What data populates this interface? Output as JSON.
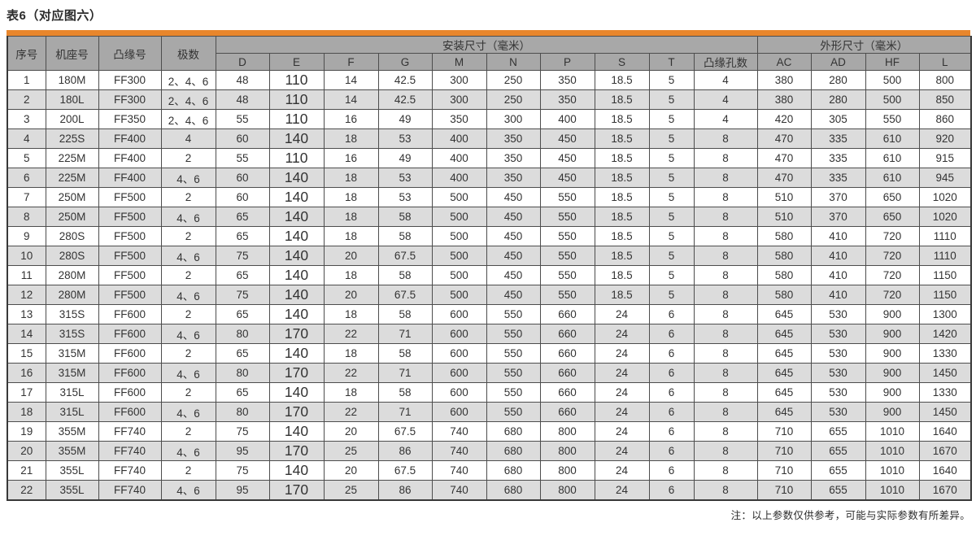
{
  "page": {
    "title": "表6（对应图六）",
    "note": "注：以上参数仅供参考，可能与实际参数有所差异。"
  },
  "colors": {
    "accent_orange": "#e8862c",
    "header_gray": "#a8a8a8",
    "alt_row_gray": "#dcdcdc",
    "border": "#4d4d4d"
  },
  "table": {
    "header": {
      "col_seq": "序号",
      "col_frame": "机座号",
      "col_flange": "凸缘号",
      "col_poles": "极数",
      "group_mounting": "安装尺寸（毫米）",
      "group_outline": "外形尺寸（毫米）",
      "mounting_cols": [
        "D",
        "E",
        "F",
        "G",
        "M",
        "N",
        "P",
        "S",
        "T",
        "凸缘孔数"
      ],
      "outline_cols": [
        "AC",
        "AD",
        "HF",
        "L"
      ]
    },
    "rows": [
      [
        "1",
        "180M",
        "FF300",
        "2、4、6",
        "48",
        "110",
        "14",
        "42.5",
        "300",
        "250",
        "350",
        "18.5",
        "5",
        "4",
        "380",
        "280",
        "500",
        "800"
      ],
      [
        "2",
        "180L",
        "FF300",
        "2、4、6",
        "48",
        "110",
        "14",
        "42.5",
        "300",
        "250",
        "350",
        "18.5",
        "5",
        "4",
        "380",
        "280",
        "500",
        "850"
      ],
      [
        "3",
        "200L",
        "FF350",
        "2、4、6",
        "55",
        "110",
        "16",
        "49",
        "350",
        "300",
        "400",
        "18.5",
        "5",
        "4",
        "420",
        "305",
        "550",
        "860"
      ],
      [
        "4",
        "225S",
        "FF400",
        "4",
        "60",
        "140",
        "18",
        "53",
        "400",
        "350",
        "450",
        "18.5",
        "5",
        "8",
        "470",
        "335",
        "610",
        "920"
      ],
      [
        "5",
        "225M",
        "FF400",
        "2",
        "55",
        "110",
        "16",
        "49",
        "400",
        "350",
        "450",
        "18.5",
        "5",
        "8",
        "470",
        "335",
        "610",
        "915"
      ],
      [
        "6",
        "225M",
        "FF400",
        "4、6",
        "60",
        "140",
        "18",
        "53",
        "400",
        "350",
        "450",
        "18.5",
        "5",
        "8",
        "470",
        "335",
        "610",
        "945"
      ],
      [
        "7",
        "250M",
        "FF500",
        "2",
        "60",
        "140",
        "18",
        "53",
        "500",
        "450",
        "550",
        "18.5",
        "5",
        "8",
        "510",
        "370",
        "650",
        "1020"
      ],
      [
        "8",
        "250M",
        "FF500",
        "4、6",
        "65",
        "140",
        "18",
        "58",
        "500",
        "450",
        "550",
        "18.5",
        "5",
        "8",
        "510",
        "370",
        "650",
        "1020"
      ],
      [
        "9",
        "280S",
        "FF500",
        "2",
        "65",
        "140",
        "18",
        "58",
        "500",
        "450",
        "550",
        "18.5",
        "5",
        "8",
        "580",
        "410",
        "720",
        "1110"
      ],
      [
        "10",
        "280S",
        "FF500",
        "4、6",
        "75",
        "140",
        "20",
        "67.5",
        "500",
        "450",
        "550",
        "18.5",
        "5",
        "8",
        "580",
        "410",
        "720",
        "1110"
      ],
      [
        "11",
        "280M",
        "FF500",
        "2",
        "65",
        "140",
        "18",
        "58",
        "500",
        "450",
        "550",
        "18.5",
        "5",
        "8",
        "580",
        "410",
        "720",
        "1150"
      ],
      [
        "12",
        "280M",
        "FF500",
        "4、6",
        "75",
        "140",
        "20",
        "67.5",
        "500",
        "450",
        "550",
        "18.5",
        "5",
        "8",
        "580",
        "410",
        "720",
        "1150"
      ],
      [
        "13",
        "315S",
        "FF600",
        "2",
        "65",
        "140",
        "18",
        "58",
        "600",
        "550",
        "660",
        "24",
        "6",
        "8",
        "645",
        "530",
        "900",
        "1300"
      ],
      [
        "14",
        "315S",
        "FF600",
        "4、6",
        "80",
        "170",
        "22",
        "71",
        "600",
        "550",
        "660",
        "24",
        "6",
        "8",
        "645",
        "530",
        "900",
        "1420"
      ],
      [
        "15",
        "315M",
        "FF600",
        "2",
        "65",
        "140",
        "18",
        "58",
        "600",
        "550",
        "660",
        "24",
        "6",
        "8",
        "645",
        "530",
        "900",
        "1330"
      ],
      [
        "16",
        "315M",
        "FF600",
        "4、6",
        "80",
        "170",
        "22",
        "71",
        "600",
        "550",
        "660",
        "24",
        "6",
        "8",
        "645",
        "530",
        "900",
        "1450"
      ],
      [
        "17",
        "315L",
        "FF600",
        "2",
        "65",
        "140",
        "18",
        "58",
        "600",
        "550",
        "660",
        "24",
        "6",
        "8",
        "645",
        "530",
        "900",
        "1330"
      ],
      [
        "18",
        "315L",
        "FF600",
        "4、6",
        "80",
        "170",
        "22",
        "71",
        "600",
        "550",
        "660",
        "24",
        "6",
        "8",
        "645",
        "530",
        "900",
        "1450"
      ],
      [
        "19",
        "355M",
        "FF740",
        "2",
        "75",
        "140",
        "20",
        "67.5",
        "740",
        "680",
        "800",
        "24",
        "6",
        "8",
        "710",
        "655",
        "1010",
        "1640"
      ],
      [
        "20",
        "355M",
        "FF740",
        "4、6",
        "95",
        "170",
        "25",
        "86",
        "740",
        "680",
        "800",
        "24",
        "6",
        "8",
        "710",
        "655",
        "1010",
        "1670"
      ],
      [
        "21",
        "355L",
        "FF740",
        "2",
        "75",
        "140",
        "20",
        "67.5",
        "740",
        "680",
        "800",
        "24",
        "6",
        "8",
        "710",
        "655",
        "1010",
        "1640"
      ],
      [
        "22",
        "355L",
        "FF740",
        "4、6",
        "95",
        "170",
        "25",
        "86",
        "740",
        "680",
        "800",
        "24",
        "6",
        "8",
        "710",
        "655",
        "1010",
        "1670"
      ]
    ]
  }
}
